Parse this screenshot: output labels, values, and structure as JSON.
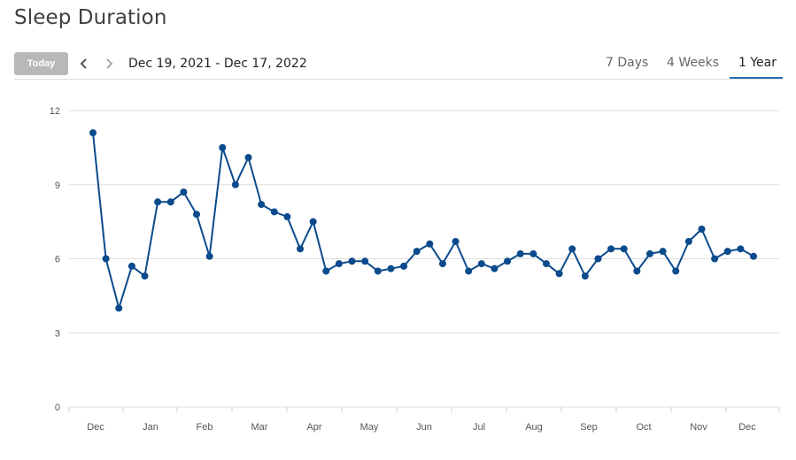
{
  "page": {
    "title": "Sleep Duration"
  },
  "toolbar": {
    "today_label": "Today",
    "prev_icon": "chevron-left-icon",
    "next_icon": "chevron-right-icon",
    "date_range": "Dec 19, 2021 - Dec 17, 2022",
    "tabs": [
      {
        "label": "7 Days",
        "active": false
      },
      {
        "label": "4 Weeks",
        "active": false
      },
      {
        "label": "1 Year",
        "active": true
      }
    ]
  },
  "colors": {
    "line": "#0b4a8c",
    "active_tab": "#2a6db5",
    "grid": "#dddddd",
    "today_button": "#b8b8b8"
  },
  "chart_data": {
    "type": "line",
    "title": "",
    "xlabel": "",
    "ylabel": "",
    "ylim": [
      0,
      12
    ],
    "yticks": [
      0,
      3,
      6,
      9,
      12
    ],
    "grid": true,
    "legend": "none",
    "x_tick_labels": [
      "Dec",
      "Jan",
      "Feb",
      "Mar",
      "Apr",
      "May",
      "Jun",
      "Jul",
      "Aug",
      "Sep",
      "Oct",
      "Nov",
      "Dec"
    ],
    "series": [
      {
        "values": [
          11.1,
          6.0,
          4.0,
          5.7,
          5.3,
          8.3,
          8.3,
          8.7,
          7.8,
          6.1,
          10.5,
          9.0,
          10.1,
          8.2,
          7.9,
          7.7,
          6.4,
          7.5,
          5.5,
          5.8,
          5.9,
          5.9,
          5.5,
          5.6,
          5.7,
          6.3,
          6.6,
          5.8,
          6.7,
          5.5,
          5.8,
          5.6,
          5.9,
          6.2,
          6.2,
          5.8,
          5.4,
          6.4,
          5.3,
          6.0,
          6.4,
          6.4,
          5.5,
          6.2,
          6.3,
          5.5,
          6.7,
          7.2,
          6.0,
          6.3,
          6.4,
          6.1
        ]
      }
    ]
  }
}
